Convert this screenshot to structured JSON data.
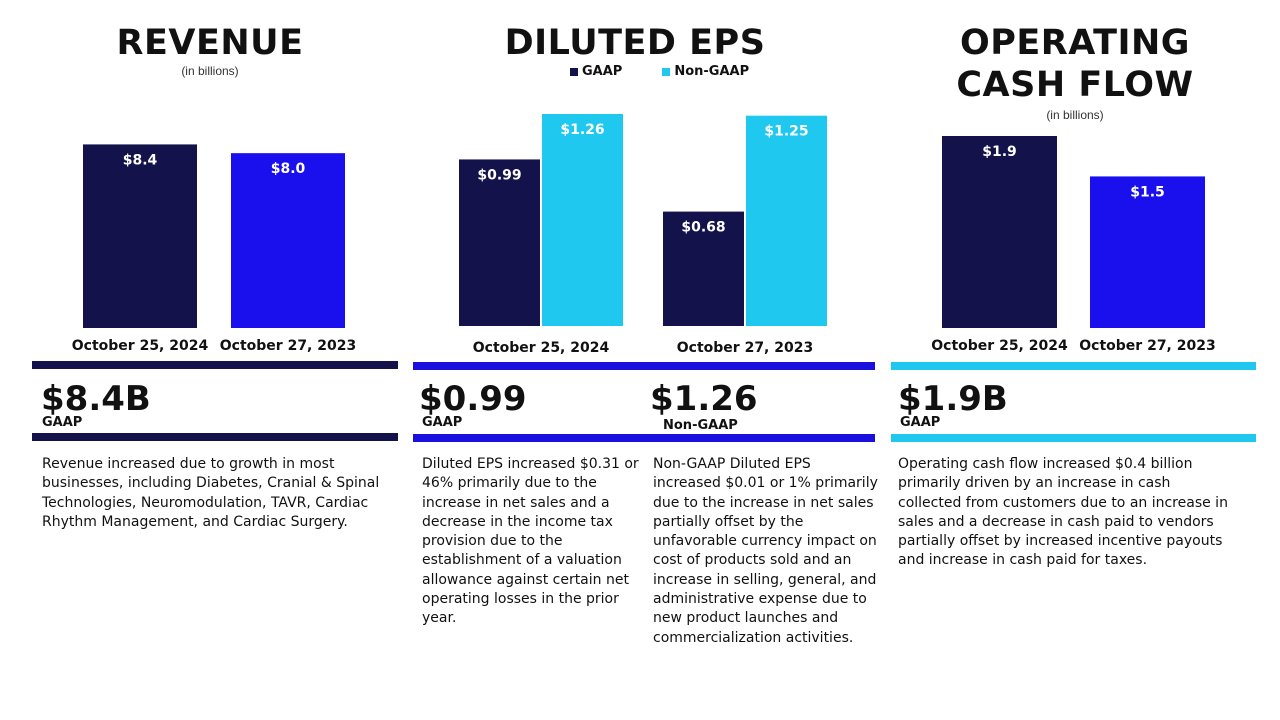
{
  "colors": {
    "navy": "#14124a",
    "royal_blue": "#1a10ee",
    "cyan": "#1ec8ee",
    "rule_navy": "#14124a",
    "rule_blue": "#1a10dd",
    "rule_cyan": "#1ec8ee"
  },
  "revenue": {
    "title": "REVENUE",
    "subtitle": "(in billions)",
    "headline": "$8.4B",
    "headline_tag": "GAAP",
    "description": "Revenue increased due to growth in most businesses, including Diabetes, Cranial & Spinal Technologies, Neuromodulation, TAVR, Cardiac Rhythm Management, and Cardiac Surgery."
  },
  "eps": {
    "title": "DILUTED EPS",
    "legend_gaap": "GAAP",
    "legend_nongaap": "Non-GAAP",
    "headline_gaap": "$0.99",
    "headline_gaap_tag": "GAAP",
    "headline_nongaap": "$1.26",
    "headline_nongaap_tag": "Non-GAAP",
    "description_gaap": "Diluted EPS increased $0.31 or 46% primarily due to the increase in net sales and a decrease in the income tax provision due to the establishment of a valuation allowance against certain net operating losses in the prior year.",
    "description_nongaap": "Non-GAAP Diluted EPS increased $0.01 or 1% primarily due to the increase in net sales partially offset by the unfavorable currency impact on cost of products sold and an increase in selling, general, and administrative expense due to new product launches and commercialization activities."
  },
  "cashflow": {
    "title_line1": "OPERATING",
    "title_line2": "CASH FLOW",
    "subtitle": "(in billions)",
    "headline": "$1.9B",
    "headline_tag": "GAAP",
    "description": "Operating cash flow increased $0.4 billion primarily driven by an increase in cash collected from customers due to an increase in sales and a decrease in cash paid to vendors partially offset by increased incentive payouts and increase in cash paid for taxes."
  },
  "chart_data": [
    {
      "type": "bar",
      "title": "REVENUE",
      "subtitle": "(in billions)",
      "categories": [
        "October 25, 2024",
        "October 27, 2023"
      ],
      "values": [
        8.4,
        8.0
      ],
      "value_labels": [
        "$8.4",
        "$8.0"
      ],
      "bar_colors": [
        "#14124a",
        "#1a10ee"
      ],
      "ylim": [
        0,
        9.7
      ]
    },
    {
      "type": "bar",
      "title": "DILUTED EPS",
      "categories": [
        "October 25, 2024",
        "October 27, 2023"
      ],
      "series": [
        {
          "name": "GAAP",
          "values": [
            0.99,
            0.68
          ],
          "value_labels": [
            "$0.99",
            "$0.68"
          ],
          "color": "#14124a"
        },
        {
          "name": "Non-GAAP",
          "values": [
            1.26,
            1.25
          ],
          "value_labels": [
            "$1.26",
            "$1.25"
          ],
          "color": "#1ec8ee"
        }
      ],
      "legend": "top",
      "ylim": [
        0,
        1.26
      ]
    },
    {
      "type": "bar",
      "title": "OPERATING CASH FLOW",
      "subtitle": "(in billions)",
      "categories": [
        "October 25, 2024",
        "October 27, 2023"
      ],
      "values": [
        1.9,
        1.5
      ],
      "value_labels": [
        "$1.9",
        "$1.5"
      ],
      "bar_colors": [
        "#14124a",
        "#1a10ee"
      ],
      "ylim": [
        0,
        1.9
      ]
    }
  ]
}
